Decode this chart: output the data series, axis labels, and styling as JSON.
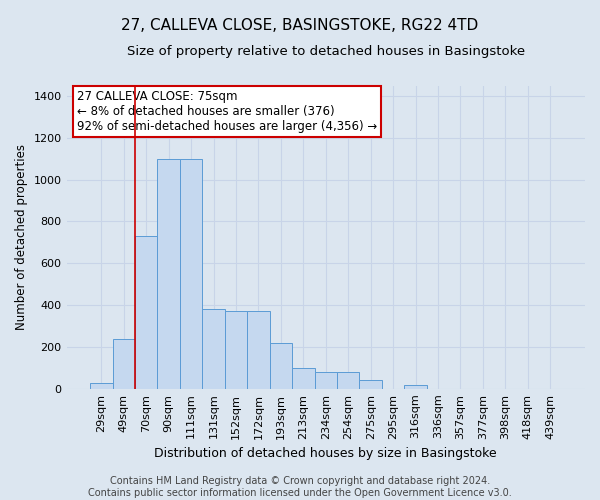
{
  "title1": "27, CALLEVA CLOSE, BASINGSTOKE, RG22 4TD",
  "title2": "Size of property relative to detached houses in Basingstoke",
  "xlabel": "Distribution of detached houses by size in Basingstoke",
  "ylabel": "Number of detached properties",
  "categories": [
    "29sqm",
    "49sqm",
    "70sqm",
    "90sqm",
    "111sqm",
    "131sqm",
    "152sqm",
    "172sqm",
    "193sqm",
    "213sqm",
    "234sqm",
    "254sqm",
    "275sqm",
    "295sqm",
    "316sqm",
    "336sqm",
    "357sqm",
    "377sqm",
    "398sqm",
    "418sqm",
    "439sqm"
  ],
  "bar_values": [
    30,
    240,
    730,
    1100,
    1100,
    380,
    370,
    370,
    220,
    100,
    80,
    80,
    40,
    0,
    20,
    0,
    0,
    0,
    0,
    0,
    0
  ],
  "bar_color": "#c5d8ef",
  "bar_edge_color": "#5b9bd5",
  "vline_color": "#cc0000",
  "annotation_text": "27 CALLEVA CLOSE: 75sqm\n← 8% of detached houses are smaller (376)\n92% of semi-detached houses are larger (4,356) →",
  "annotation_box_color": "white",
  "annotation_box_edge_color": "#cc0000",
  "ylim": [
    0,
    1450
  ],
  "yticks": [
    0,
    200,
    400,
    600,
    800,
    1000,
    1200,
    1400
  ],
  "grid_color": "#c8d4e8",
  "bg_color": "#dce6f0",
  "footer_text": "Contains HM Land Registry data © Crown copyright and database right 2024.\nContains public sector information licensed under the Open Government Licence v3.0.",
  "title1_fontsize": 11,
  "title2_fontsize": 9.5,
  "xlabel_fontsize": 9,
  "ylabel_fontsize": 8.5,
  "annotation_fontsize": 8.5,
  "footer_fontsize": 7,
  "tick_fontsize": 8
}
